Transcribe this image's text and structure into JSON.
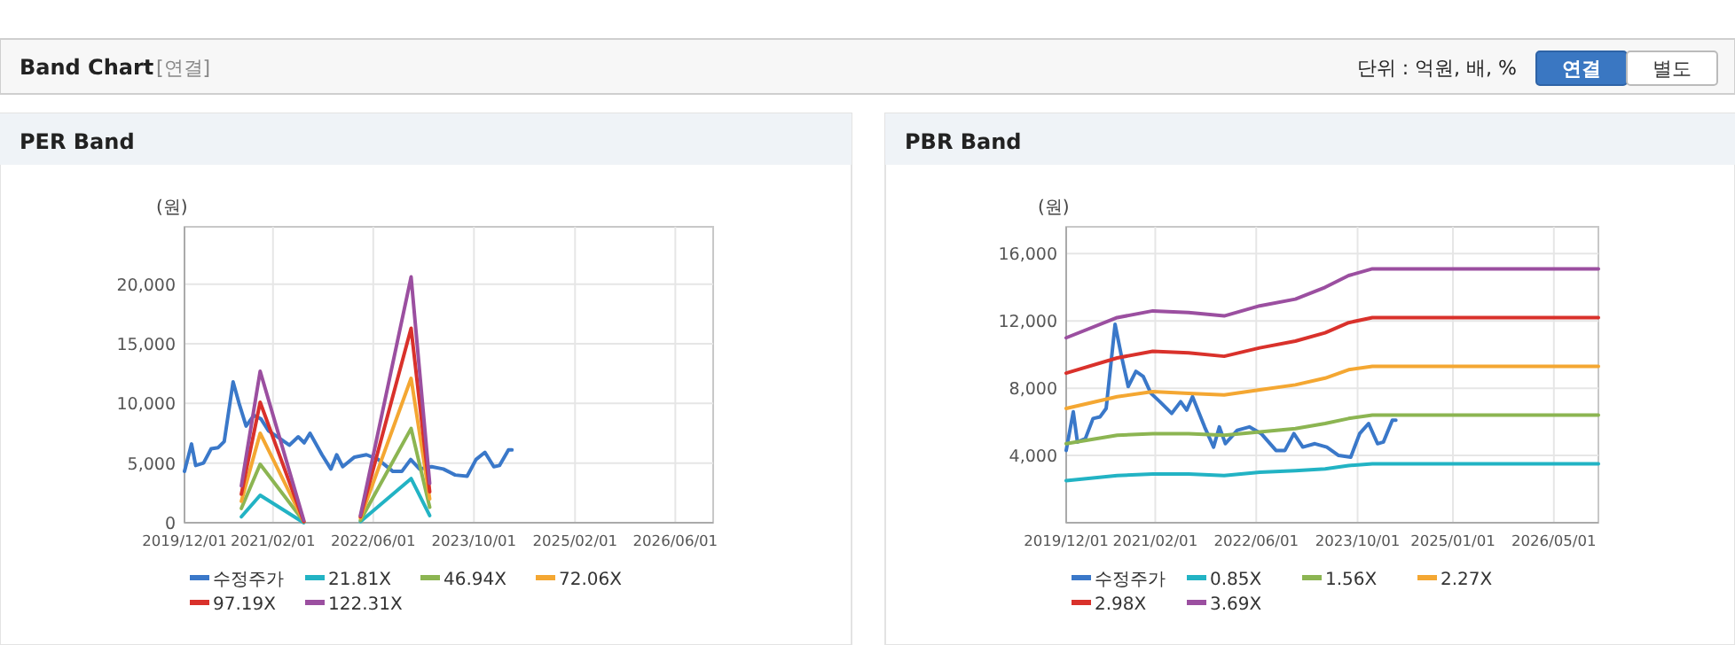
{
  "chart_data": [
    {
      "type": "other",
      "title": "Band Chart",
      "subtitle": "[연결]",
      "annotations": [
        "단위 : 억원, 배, %",
        "연결",
        "별도"
      ]
    },
    {
      "type": "line",
      "title": "PER Band",
      "ylabel": "(원)",
      "xlim": [
        "2019-12-01",
        "2026-12-01"
      ],
      "xticks": [
        {
          "value": "2019-12-01",
          "label": "2019/12/01"
        },
        {
          "value": "2021-02-01",
          "label": "2021/02/01"
        },
        {
          "value": "2022-06-01",
          "label": "2022/06/01"
        },
        {
          "value": "2023-10-01",
          "label": "2023/10/01"
        },
        {
          "value": "2025-02-01",
          "label": "2025/02/01"
        },
        {
          "value": "2026-06-01",
          "label": "2026/06/01"
        }
      ],
      "ylim": [
        0,
        24800
      ],
      "yticks": [
        0,
        {
          "value": 5000,
          "label": "5,000"
        },
        {
          "value": 10000,
          "label": "10,000"
        },
        {
          "value": 15000,
          "label": "15,000"
        },
        {
          "value": 20000,
          "label": "20,000"
        }
      ],
      "grid": true,
      "legend": "bottom",
      "series": [
        {
          "name": "수정주가",
          "color": "#3a78c9",
          "x": [
            "2019-12-01",
            "2020-01-04",
            "2020-01-24",
            "2020-03-02",
            "2020-04-08",
            "2020-05-12",
            "2020-06-10",
            "2020-07-23",
            "2020-08-21",
            "2020-09-24",
            "2020-10-31",
            "2020-12-05",
            "2021-01-11",
            "2021-02-23",
            "2021-04-21",
            "2021-06-03",
            "2021-07-02",
            "2021-07-30",
            "2021-09-26",
            "2021-11-08",
            "2021-12-06",
            "2022-01-04",
            "2022-03-02",
            "2022-04-29",
            "2022-06-25",
            "2022-09-04",
            "2022-10-17",
            "2022-11-29",
            "2023-01-11",
            "2023-03-10",
            "2023-05-06",
            "2023-07-02",
            "2023-08-29",
            "2023-10-11",
            "2023-11-23",
            "2024-01-05",
            "2024-02-02",
            "2024-03-16",
            "2024-04-02"
          ],
          "values": [
            4300,
            6600,
            4800,
            5000,
            6200,
            6300,
            6800,
            11800,
            10000,
            8100,
            9000,
            8700,
            7700,
            7200,
            6500,
            7200,
            6700,
            7500,
            5700,
            4500,
            5700,
            4700,
            5500,
            5700,
            5300,
            4300,
            4300,
            5300,
            4500,
            4700,
            4500,
            4000,
            3900,
            5300,
            5900,
            4700,
            4800,
            6100,
            6100
          ]
        },
        {
          "name": "21.81X",
          "color": "#22b3c4",
          "x": [
            "2020-09-01",
            "2020-12-01",
            "2021-06-30"
          ],
          "values": [
            500,
            2300,
            0
          ]
        },
        {
          "name": "46.94X",
          "color": "#8cb552",
          "x": [
            "2020-09-01",
            "2020-12-01",
            "2021-06-30"
          ],
          "values": [
            1200,
            4900,
            100
          ]
        },
        {
          "name": "72.06X",
          "color": "#f4a732",
          "x": [
            "2020-09-01",
            "2020-12-01",
            "2021-06-30"
          ],
          "values": [
            1800,
            7500,
            100
          ]
        },
        {
          "name": "97.19X",
          "color": "#d9312b",
          "x": [
            "2020-09-01",
            "2020-12-01",
            "2021-06-30"
          ],
          "values": [
            2400,
            10100,
            100
          ]
        },
        {
          "name": "122.31X",
          "color": "#9b4fa0",
          "x": [
            "2020-09-01",
            "2020-12-01",
            "2021-06-30"
          ],
          "values": [
            3100,
            12700,
            200
          ]
        },
        {
          "color": "#22b3c4",
          "x": [
            "2022-03-31",
            "2022-12-01",
            "2023-03-01"
          ],
          "values": [
            100,
            3700,
            600
          ]
        },
        {
          "color": "#8cb552",
          "x": [
            "2022-03-31",
            "2022-12-01",
            "2023-03-01"
          ],
          "values": [
            200,
            7900,
            1300
          ]
        },
        {
          "color": "#f4a732",
          "x": [
            "2022-03-31",
            "2022-12-01",
            "2023-03-01"
          ],
          "values": [
            400,
            12100,
            2000
          ]
        },
        {
          "color": "#d9312b",
          "x": [
            "2022-03-31",
            "2022-12-01",
            "2023-03-01"
          ],
          "values": [
            500,
            16300,
            2600
          ]
        },
        {
          "color": "#9b4fa0",
          "x": [
            "2022-03-31",
            "2022-12-01",
            "2023-03-01"
          ],
          "values": [
            600,
            20600,
            3300
          ]
        }
      ]
    },
    {
      "type": "line",
      "title": "PBR Band",
      "ylabel": "(원)",
      "xlim": [
        "2019-12-01",
        "2026-12-01"
      ],
      "xticks": [
        {
          "value": "2019-12-01",
          "label": "2019/12/01"
        },
        {
          "value": "2021-02-01",
          "label": "2021/02/01"
        },
        {
          "value": "2022-06-01",
          "label": "2022/06/01"
        },
        {
          "value": "2023-10-01",
          "label": "2023/10/01"
        },
        {
          "value": "2025-01-01",
          "label": "2025/01/01"
        },
        {
          "value": "2026-05-01",
          "label": "2026/05/01"
        }
      ],
      "ylim": [
        0,
        17600
      ],
      "yticks": [
        {
          "value": 4000,
          "label": "4,000"
        },
        {
          "value": 8000,
          "label": "8,000"
        },
        {
          "value": 12000,
          "label": "12,000"
        },
        {
          "value": 16000,
          "label": "16,000"
        }
      ],
      "grid": true,
      "legend": "bottom",
      "series": [
        {
          "name": "수정주가",
          "color": "#3a78c9",
          "x": [
            "2019-12-01",
            "2020-01-04",
            "2020-01-24",
            "2020-03-02",
            "2020-04-08",
            "2020-05-12",
            "2020-06-10",
            "2020-07-23",
            "2020-08-21",
            "2020-09-24",
            "2020-10-31",
            "2020-12-05",
            "2021-01-11",
            "2021-02-23",
            "2021-04-21",
            "2021-06-03",
            "2021-07-02",
            "2021-07-30",
            "2021-09-26",
            "2021-11-08",
            "2021-12-06",
            "2022-01-04",
            "2022-03-02",
            "2022-04-29",
            "2022-06-25",
            "2022-09-04",
            "2022-10-17",
            "2022-11-29",
            "2023-01-11",
            "2023-03-10",
            "2023-05-06",
            "2023-07-02",
            "2023-08-29",
            "2023-10-11",
            "2023-11-23",
            "2024-01-05",
            "2024-02-02",
            "2024-03-16",
            "2024-04-02"
          ],
          "values": [
            4300,
            6600,
            4800,
            5000,
            6200,
            6300,
            6800,
            11800,
            10000,
            8100,
            9000,
            8700,
            7700,
            7200,
            6500,
            7200,
            6700,
            7500,
            5700,
            4500,
            5700,
            4700,
            5500,
            5700,
            5300,
            4300,
            4300,
            5300,
            4500,
            4700,
            4500,
            4000,
            3900,
            5300,
            5900,
            4700,
            4800,
            6100,
            6100
          ]
        },
        {
          "name": "0.85X",
          "color": "#22b3c4",
          "x": [
            "2019-12-01",
            "2020-08-02",
            "2021-01-20",
            "2021-07-11",
            "2021-12-29",
            "2022-06-18",
            "2022-12-06",
            "2023-04-28",
            "2023-08-19",
            "2023-12-11",
            "2026-12-01"
          ],
          "values": [
            2500,
            2800,
            2900,
            2900,
            2800,
            3000,
            3100,
            3200,
            3400,
            3500,
            3500
          ]
        },
        {
          "name": "1.56X",
          "color": "#8cb552",
          "x": [
            "2019-12-01",
            "2020-08-02",
            "2021-01-20",
            "2021-07-11",
            "2021-12-29",
            "2022-06-18",
            "2022-12-06",
            "2023-04-28",
            "2023-08-19",
            "2023-12-11",
            "2026-12-01"
          ],
          "values": [
            4700,
            5200,
            5300,
            5300,
            5200,
            5400,
            5600,
            5900,
            6200,
            6400,
            6400
          ]
        },
        {
          "name": "2.27X",
          "color": "#f4a732",
          "x": [
            "2019-12-01",
            "2020-08-02",
            "2021-01-20",
            "2021-07-11",
            "2021-12-29",
            "2022-06-18",
            "2022-12-06",
            "2023-04-28",
            "2023-08-19",
            "2023-12-11",
            "2026-12-01"
          ],
          "values": [
            6800,
            7500,
            7800,
            7700,
            7600,
            7900,
            8200,
            8600,
            9100,
            9300,
            9300
          ]
        },
        {
          "name": "2.98X",
          "color": "#d9312b",
          "x": [
            "2019-12-01",
            "2020-08-02",
            "2021-01-20",
            "2021-07-11",
            "2021-12-29",
            "2022-06-18",
            "2022-12-06",
            "2023-04-28",
            "2023-08-19",
            "2023-12-11",
            "2026-12-01"
          ],
          "values": [
            8900,
            9800,
            10200,
            10100,
            9900,
            10400,
            10800,
            11300,
            11900,
            12200,
            12200
          ]
        },
        {
          "name": "3.69X",
          "color": "#9b4fa0",
          "x": [
            "2019-12-01",
            "2020-08-02",
            "2021-01-20",
            "2021-07-11",
            "2021-12-29",
            "2022-06-18",
            "2022-12-06",
            "2023-04-28",
            "2023-08-19",
            "2023-12-11",
            "2026-12-01"
          ],
          "values": [
            11000,
            12200,
            12600,
            12500,
            12300,
            12900,
            13300,
            14000,
            14700,
            15100,
            15100
          ]
        }
      ]
    }
  ]
}
